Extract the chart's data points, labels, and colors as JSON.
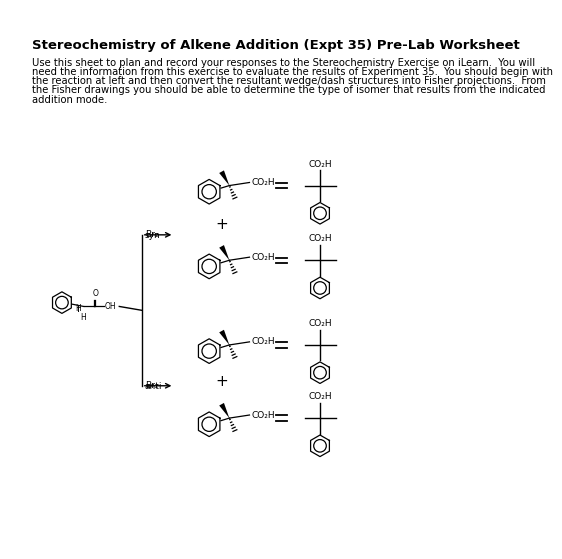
{
  "title": "Stereochemistry of Alkene Addition (Expt 35) Pre-Lab Worksheet",
  "body_lines": [
    "Use this sheet to plan and record your responses to the Stereochemistry Exercise on iLearn.  You will",
    "need the information from this exercise to evaluate the results of Experiment 35.  You should begin with",
    "the reaction at left and then convert the resultant wedge/dash structures into Fisher projections.  From",
    "the Fisher drawings you should be able to determine the type of isomer that results from the indicated",
    "addition mode."
  ],
  "bg_color": "#ffffff",
  "text_color": "#000000",
  "title_fontsize": 9.5,
  "body_fontsize": 7.2
}
